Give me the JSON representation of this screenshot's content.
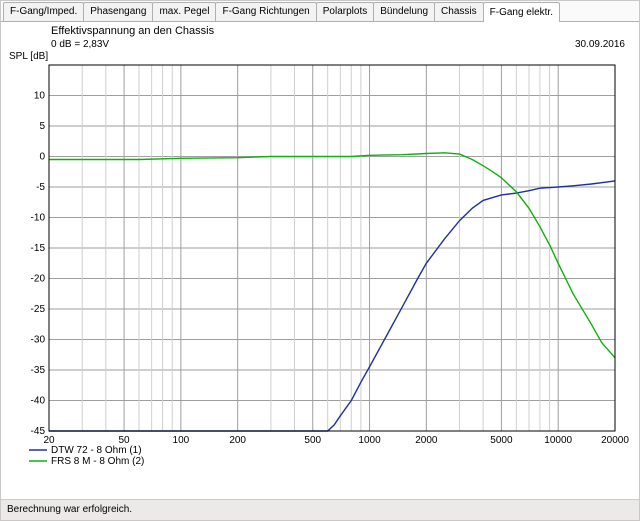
{
  "tabs": [
    {
      "label": "F-Gang/Imped.",
      "active": false
    },
    {
      "label": "Phasengang",
      "active": false
    },
    {
      "label": "max. Pegel",
      "active": false
    },
    {
      "label": "F-Gang Richtungen",
      "active": false
    },
    {
      "label": "Polarplots",
      "active": false
    },
    {
      "label": "Bündelung",
      "active": false
    },
    {
      "label": "Chassis",
      "active": false
    },
    {
      "label": "F-Gang elektr.",
      "active": true
    }
  ],
  "title": "Effektivspannung an den Chassis",
  "subtitle": "0 dB = 2,83V",
  "date": "30.09.2016",
  "ylabel": "SPL [dB]",
  "status": "Berechnung war erfolgreich.",
  "chart": {
    "background": "#ffffff",
    "grid_minor_color": "#cfcfcf",
    "grid_major_color": "#9f9f9f",
    "axis": {
      "x_log": true,
      "x_min": 20,
      "x_max": 20000,
      "x_major_ticks": [
        20,
        50,
        100,
        200,
        500,
        1000,
        2000,
        5000,
        10000,
        20000
      ],
      "x_labels": [
        "20",
        "50",
        "100",
        "200",
        "500",
        "1000",
        "2000",
        "5000",
        "10000",
        "20000"
      ],
      "x_minor_ticks": [
        30,
        40,
        60,
        70,
        80,
        90,
        300,
        400,
        600,
        700,
        800,
        900,
        3000,
        4000,
        6000,
        7000,
        8000,
        9000
      ],
      "y_min": -45,
      "y_max": 15,
      "y_step": 5,
      "y_labels": [
        "-45",
        "-40",
        "-35",
        "-30",
        "-25",
        "-20",
        "-15",
        "-10",
        "-5",
        "0",
        "5",
        "10"
      ],
      "label_fontsize": 10
    },
    "series": [
      {
        "name": "DTW 72 - 8 Ohm (1)",
        "color": "#2030a0",
        "points": [
          [
            20,
            -45
          ],
          [
            100,
            -45
          ],
          [
            300,
            -45
          ],
          [
            500,
            -45
          ],
          [
            600,
            -45
          ],
          [
            650,
            -44
          ],
          [
            700,
            -42.5
          ],
          [
            800,
            -40
          ],
          [
            900,
            -37
          ],
          [
            1000,
            -34.5
          ],
          [
            1200,
            -30
          ],
          [
            1500,
            -24.5
          ],
          [
            1800,
            -20
          ],
          [
            2000,
            -17.5
          ],
          [
            2500,
            -13.5
          ],
          [
            3000,
            -10.5
          ],
          [
            3500,
            -8.5
          ],
          [
            4000,
            -7.2
          ],
          [
            5000,
            -6.3
          ],
          [
            6000,
            -6.0
          ],
          [
            7000,
            -5.6
          ],
          [
            8000,
            -5.2
          ],
          [
            10000,
            -5.0
          ],
          [
            12000,
            -4.8
          ],
          [
            15000,
            -4.5
          ],
          [
            20000,
            -4.0
          ]
        ]
      },
      {
        "name": "FRS 8 M - 8 Ohm (2)",
        "color": "#10b010",
        "points": [
          [
            20,
            -0.5
          ],
          [
            40,
            -0.5
          ],
          [
            60,
            -0.5
          ],
          [
            100,
            -0.3
          ],
          [
            200,
            -0.2
          ],
          [
            300,
            0.0
          ],
          [
            500,
            0.0
          ],
          [
            800,
            0.0
          ],
          [
            1000,
            0.2
          ],
          [
            1500,
            0.3
          ],
          [
            2000,
            0.5
          ],
          [
            2500,
            0.6
          ],
          [
            3000,
            0.4
          ],
          [
            3500,
            -0.5
          ],
          [
            4000,
            -1.5
          ],
          [
            4500,
            -2.5
          ],
          [
            5000,
            -3.5
          ],
          [
            6000,
            -5.8
          ],
          [
            7000,
            -8.5
          ],
          [
            8000,
            -11.5
          ],
          [
            9000,
            -14.5
          ],
          [
            10000,
            -17.5
          ],
          [
            12000,
            -22.5
          ],
          [
            15000,
            -27.5
          ],
          [
            17000,
            -30.5
          ],
          [
            20000,
            -33.0
          ]
        ]
      }
    ]
  }
}
